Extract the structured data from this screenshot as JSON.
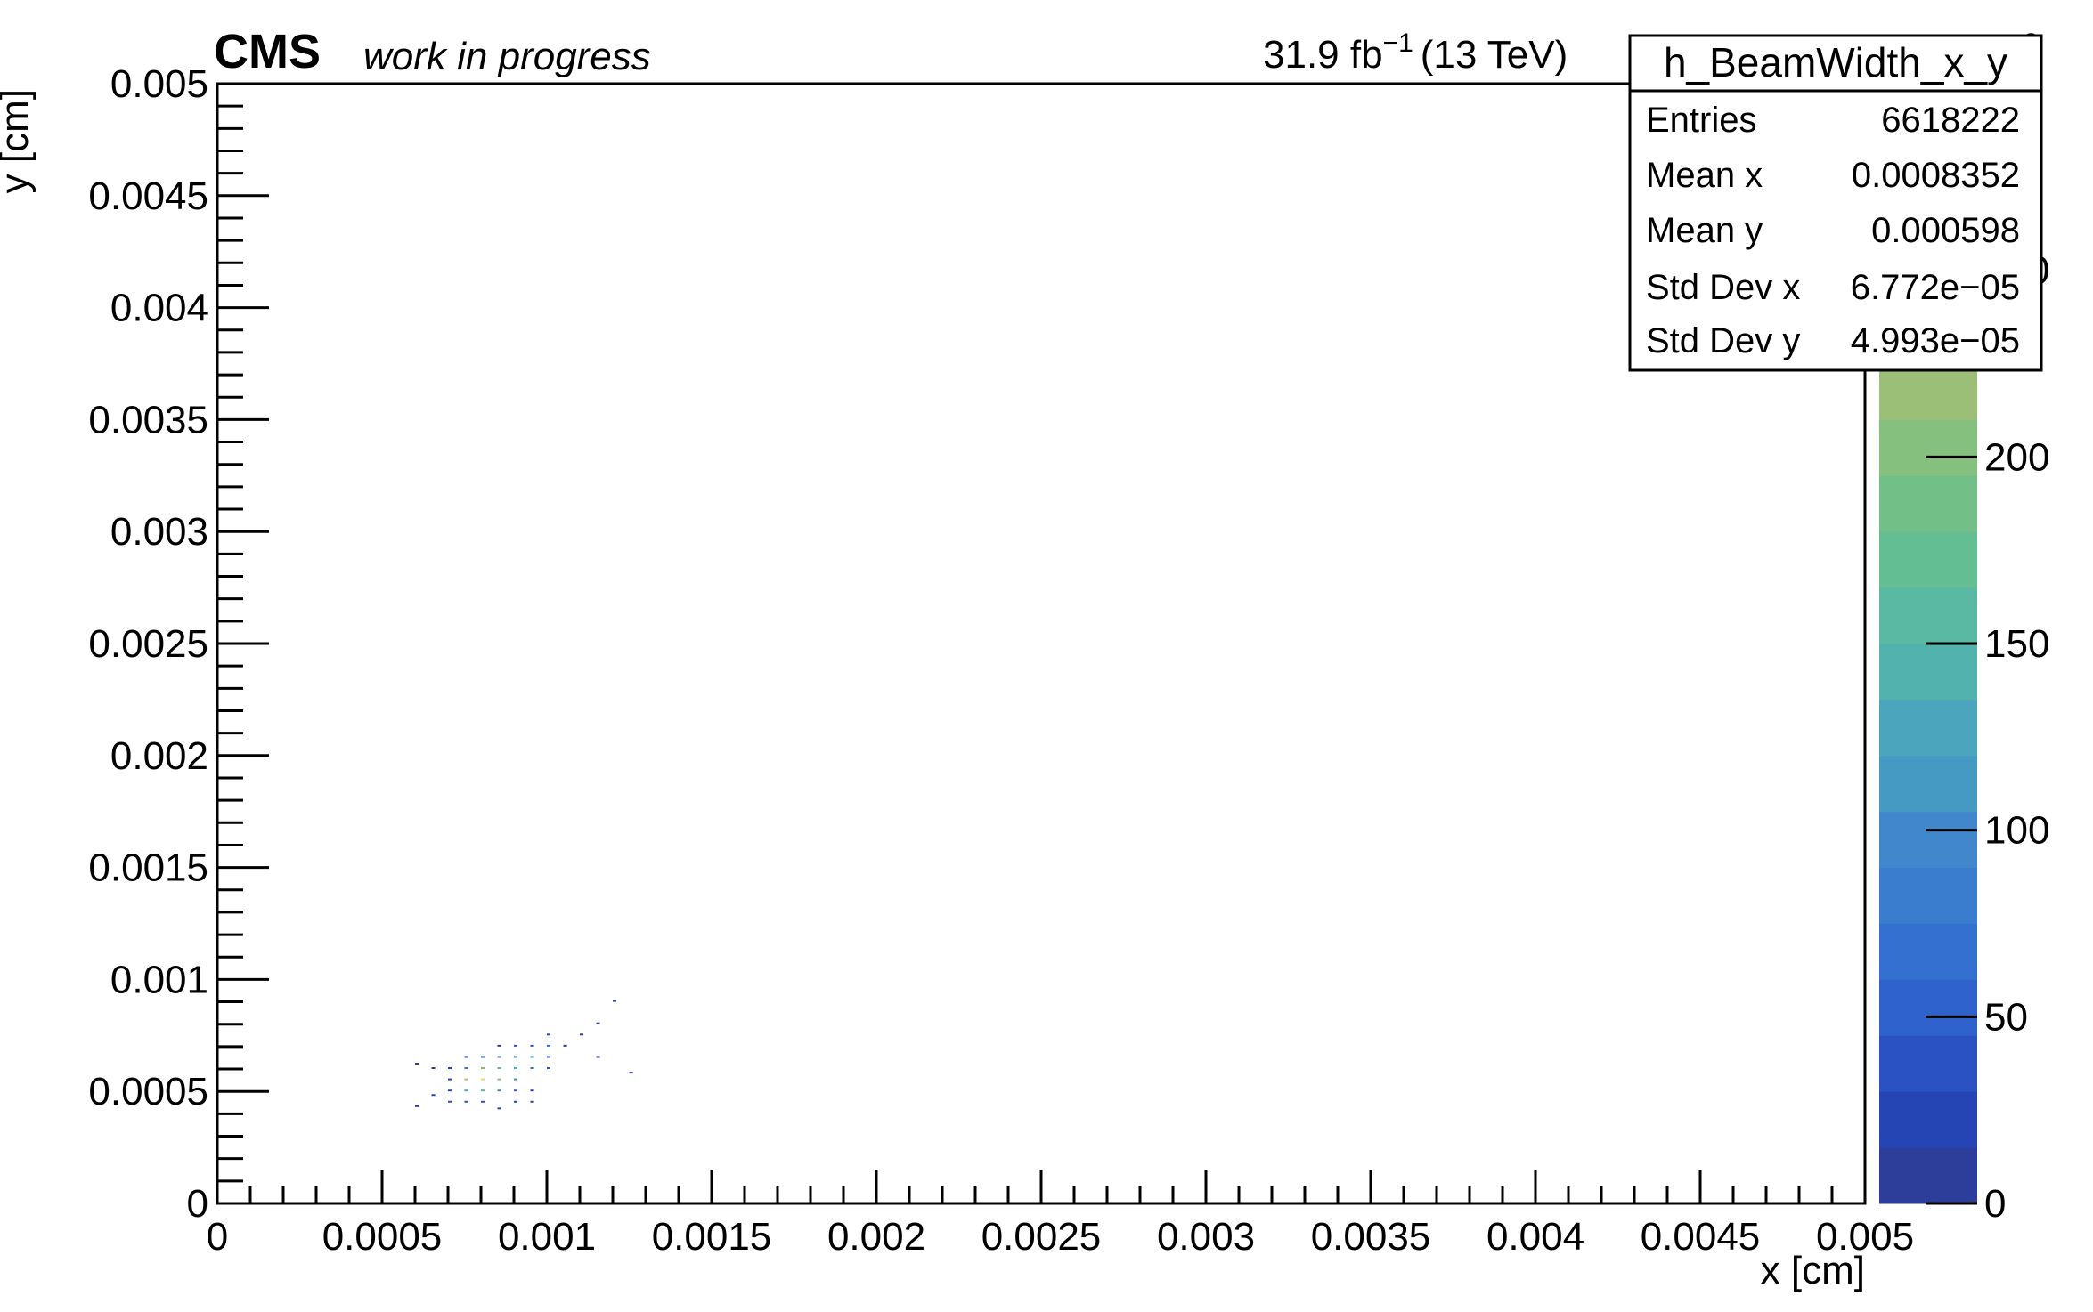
{
  "header": {
    "experiment": "CMS",
    "status": "work in progress",
    "lumi_value": "31.9 fb",
    "lumi_exp": "−1",
    "energy": "(13 TeV)"
  },
  "stats_box": {
    "title": "h_BeamWidth_x_y",
    "rows": [
      {
        "label": "Entries",
        "value": "6618222"
      },
      {
        "label": "Mean x",
        "value": "0.0008352"
      },
      {
        "label": "Mean y",
        "value": "0.000598"
      },
      {
        "label": "Std Dev x",
        "value": "6.772e−05"
      },
      {
        "label": "Std Dev y",
        "value": "4.993e−05"
      }
    ]
  },
  "colorbar": {
    "ticks": [
      "0",
      "50",
      "100",
      "150",
      "200",
      "250"
    ],
    "partial_labels": [
      "0",
      "0"
    ],
    "multiplier_fragment": "3",
    "colors": [
      "#2c3e99",
      "#2645b5",
      "#2a52c3",
      "#2f62cc",
      "#3370cf",
      "#3a7dcf",
      "#4088cb",
      "#459ac4",
      "#4aa5bd",
      "#52b2ae",
      "#5ab9a2",
      "#64be94",
      "#73bf88",
      "#86c07e",
      "#9cbf78",
      "#b0bc6f",
      "#c4b66a",
      "#d8b563",
      "#e8c160",
      "#f4d45a"
    ]
  },
  "chart_data": {
    "type": "heatmap",
    "title": "",
    "xlabel": "x [cm]",
    "ylabel": "y [cm]",
    "xlim": [
      0,
      0.005
    ],
    "ylim": [
      0,
      0.005
    ],
    "xticks": [
      "0",
      "0.0005",
      "0.001",
      "0.0015",
      "0.002",
      "0.0025",
      "0.003",
      "0.0035",
      "0.004",
      "0.0045",
      "0.005"
    ],
    "yticks": [
      "0",
      "0.0005",
      "0.001",
      "0.0015",
      "0.002",
      "0.0025",
      "0.003",
      "0.0035",
      "0.004",
      "0.0045",
      "0.005"
    ],
    "zlim": [
      0,
      300
    ],
    "bin_width": 5e-05,
    "grid": false,
    "cells": [
      [
        0.0006,
        0.00043,
        5
      ],
      [
        0.00065,
        0.0006,
        5
      ],
      [
        0.0006,
        0.00062,
        5
      ],
      [
        0.00065,
        0.00048,
        20
      ],
      [
        0.0007,
        0.00045,
        30
      ],
      [
        0.0007,
        0.0005,
        40
      ],
      [
        0.0007,
        0.00055,
        25
      ],
      [
        0.0007,
        0.0006,
        15
      ],
      [
        0.00075,
        0.00045,
        40
      ],
      [
        0.00075,
        0.0005,
        120
      ],
      [
        0.00075,
        0.00055,
        250
      ],
      [
        0.00075,
        0.0006,
        60
      ],
      [
        0.00075,
        0.00065,
        20
      ],
      [
        0.0008,
        0.00045,
        30
      ],
      [
        0.0008,
        0.0005,
        150
      ],
      [
        0.0008,
        0.00055,
        290
      ],
      [
        0.0008,
        0.0006,
        180
      ],
      [
        0.0008,
        0.00065,
        50
      ],
      [
        0.00085,
        0.00042,
        15
      ],
      [
        0.00085,
        0.0005,
        90
      ],
      [
        0.00085,
        0.00055,
        200
      ],
      [
        0.00085,
        0.0006,
        160
      ],
      [
        0.00085,
        0.00065,
        60
      ],
      [
        0.00085,
        0.0007,
        10
      ],
      [
        0.0009,
        0.00045,
        20
      ],
      [
        0.0009,
        0.0005,
        50
      ],
      [
        0.0009,
        0.00055,
        100
      ],
      [
        0.0009,
        0.0006,
        140
      ],
      [
        0.0009,
        0.00065,
        80
      ],
      [
        0.0009,
        0.0007,
        30
      ],
      [
        0.00095,
        0.00045,
        10
      ],
      [
        0.00095,
        0.0005,
        25
      ],
      [
        0.00095,
        0.0006,
        60
      ],
      [
        0.00095,
        0.00065,
        90
      ],
      [
        0.00095,
        0.0007,
        40
      ],
      [
        0.001,
        0.0006,
        30
      ],
      [
        0.001,
        0.00065,
        50
      ],
      [
        0.001,
        0.0007,
        60
      ],
      [
        0.001,
        0.00075,
        20
      ],
      [
        0.00105,
        0.0007,
        10
      ],
      [
        0.0011,
        0.00075,
        5
      ],
      [
        0.00115,
        0.0008,
        5
      ],
      [
        0.0012,
        0.0009,
        5
      ],
      [
        0.00115,
        0.00065,
        5
      ],
      [
        0.00125,
        0.00058,
        5
      ]
    ]
  }
}
